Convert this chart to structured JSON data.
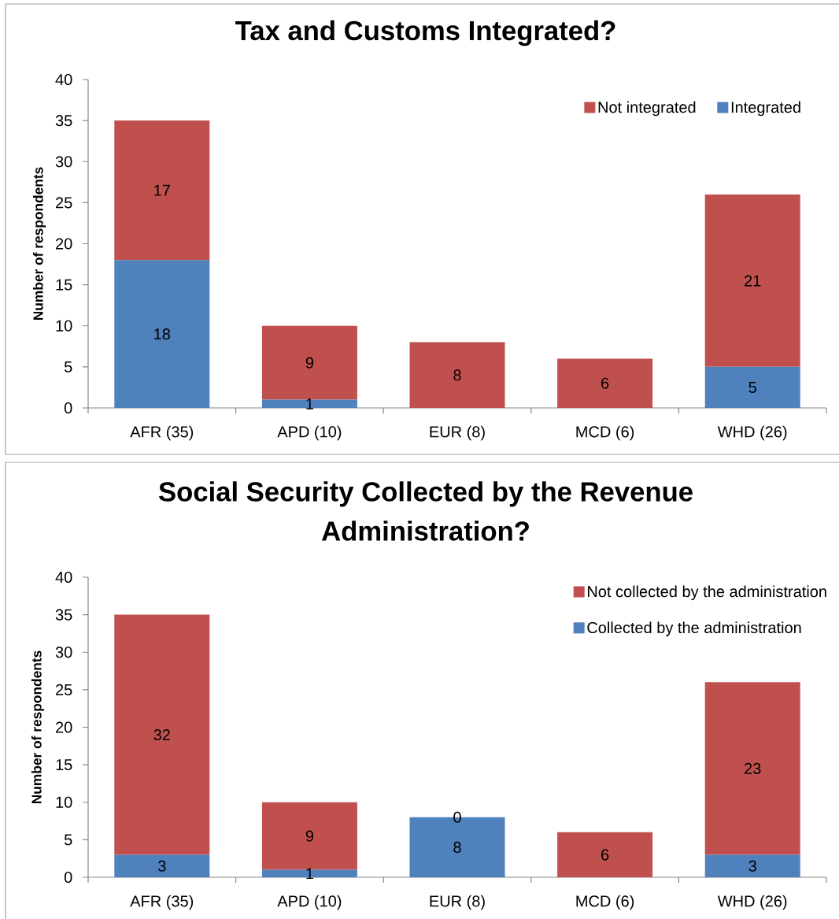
{
  "chart_data": [
    {
      "type": "bar",
      "title": "Tax and Customs Integrated?",
      "ylabel": "Number of respondents",
      "categories": [
        "AFR (35)",
        "APD (10)",
        "EUR (8)",
        "MCD (6)",
        "WHD (26)"
      ],
      "stacked": true,
      "series": [
        {
          "name": "Integrated",
          "color": "#4f81bd",
          "values": [
            18,
            1,
            0,
            0,
            5
          ],
          "value_labels": [
            "18",
            "1",
            null,
            null,
            "5"
          ]
        },
        {
          "name": "Not integrated",
          "color": "#c0504d",
          "values": [
            17,
            9,
            8,
            6,
            21
          ],
          "value_labels": [
            "17",
            "9",
            "8",
            "6",
            "21"
          ]
        }
      ],
      "ylim": [
        0,
        40
      ],
      "yticks": [
        0,
        5,
        10,
        15,
        20,
        25,
        30,
        35,
        40
      ],
      "legend": "top right"
    },
    {
      "type": "bar",
      "title": "Social Security Collected by the Revenue Administration?",
      "ylabel": "Number of respondents",
      "categories": [
        "AFR (35)",
        "APD (10)",
        "EUR (8)",
        "MCD (6)",
        "WHD (26)"
      ],
      "stacked": true,
      "series": [
        {
          "name": "Collected by the administration",
          "color": "#4f81bd",
          "values": [
            3,
            1,
            8,
            0,
            3
          ],
          "value_labels": [
            "3",
            "1",
            "8",
            null,
            "3"
          ]
        },
        {
          "name": "Not collected by the administration",
          "color": "#c0504d",
          "values": [
            32,
            9,
            0,
            6,
            23
          ],
          "value_labels": [
            "32",
            "9",
            "0",
            "6",
            "23"
          ]
        }
      ],
      "ylim": [
        0,
        40
      ],
      "yticks": [
        0,
        5,
        10,
        15,
        20,
        25,
        30,
        35,
        40
      ],
      "legend": "top right"
    }
  ]
}
